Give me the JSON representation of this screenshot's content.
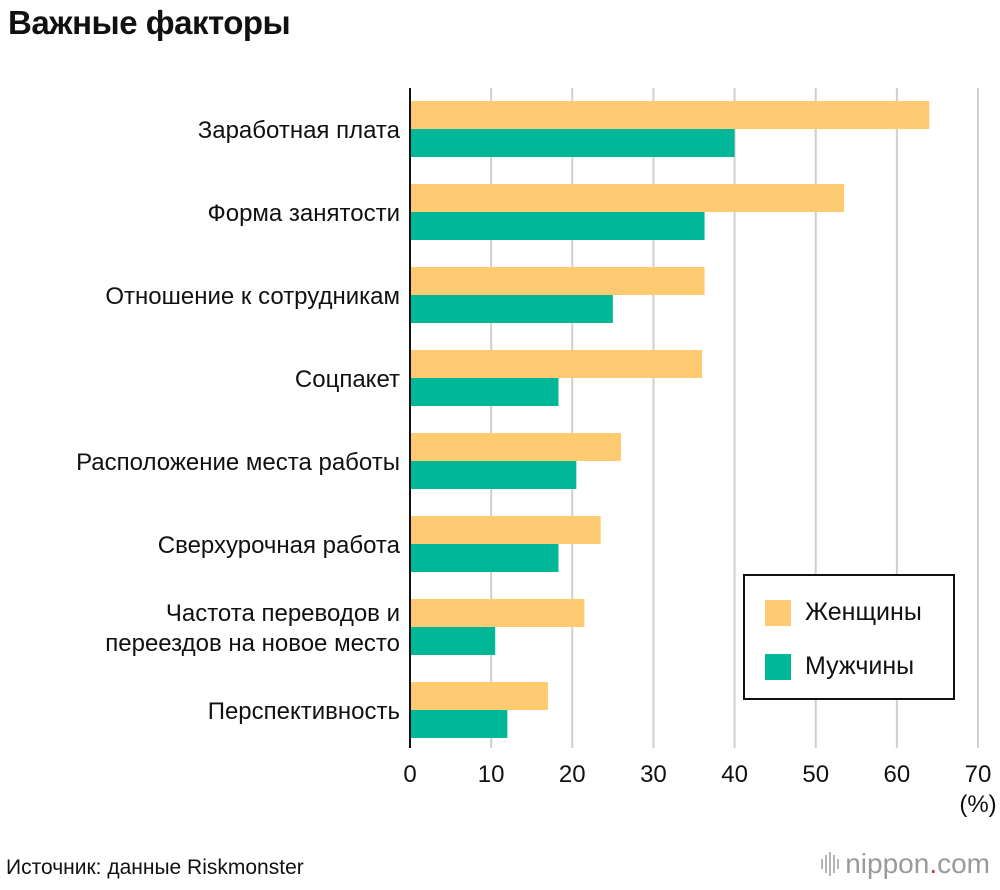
{
  "chart_data": {
    "type": "bar",
    "orientation": "horizontal",
    "title": "Важные факторы",
    "categories": [
      "Заработная плата",
      "Форма занятости",
      "Отношение к сотрудникам",
      "Соцпакет",
      "Расположение места работы",
      "Сверхурочная работа",
      "Частота переводов и переездов на новое место",
      "Перспективность"
    ],
    "category_lines": [
      [
        "Заработная плата"
      ],
      [
        "Форма занятости"
      ],
      [
        "Отношение к сотрудникам"
      ],
      [
        "Соцпакет"
      ],
      [
        "Расположение места работы"
      ],
      [
        "Сверхурочная работа"
      ],
      [
        "Частота переводов и",
        "переездов на новое место"
      ],
      [
        "Перспективность"
      ]
    ],
    "series": [
      {
        "name": "Женщины",
        "color": "#FFCB72",
        "values": [
          64,
          53.5,
          36.3,
          36,
          26,
          23.5,
          21.5,
          17
        ]
      },
      {
        "name": "Мужчины",
        "color": "#00B898",
        "values": [
          40,
          36.3,
          25,
          18.3,
          20.5,
          18.3,
          10.5,
          12
        ]
      }
    ],
    "xlim": [
      0,
      70
    ],
    "xticks": [
      "0",
      "10",
      "20",
      "30",
      "40",
      "50",
      "60",
      "70"
    ],
    "xunit": "(%)",
    "grid": true,
    "legend_position": "bottom-right"
  },
  "source": "Источник: данные Riskmonster",
  "brand": {
    "name": "nippon",
    "dot": ".",
    "tld": "com"
  }
}
